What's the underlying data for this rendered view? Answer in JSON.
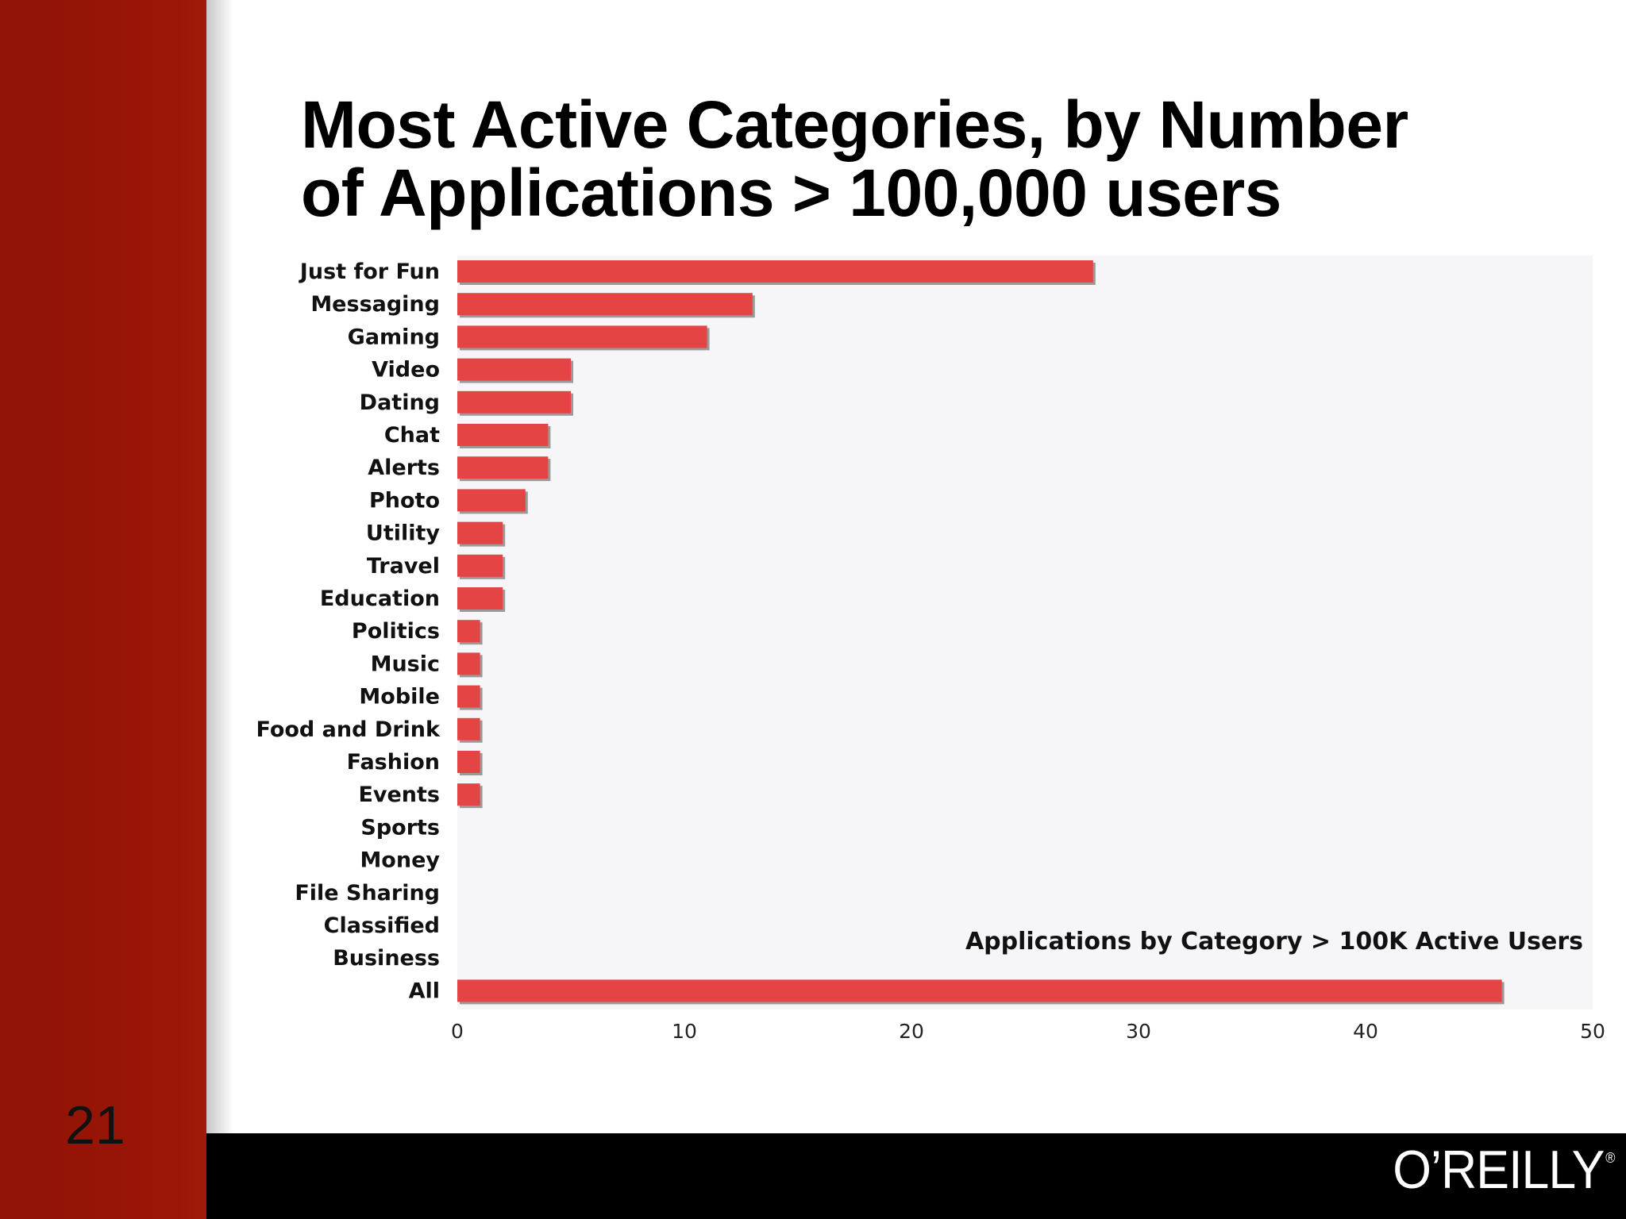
{
  "slide": {
    "number": "21",
    "title_line1": "Most Active Categories, by Number",
    "title_line2": "of Applications > 100,000 users",
    "logo_text": "O’REILLY",
    "logo_mark": "®"
  },
  "colors": {
    "bar": "#e44444",
    "bar_shadow": "#9a9a9a",
    "plot_bg": "#f6f6f8",
    "left_band": "#9b1607",
    "footer": "#000000"
  },
  "chart_data": {
    "type": "bar",
    "orientation": "horizontal",
    "title": "",
    "inline_label": "Applications by Category > 100K Active Users",
    "xlabel": "",
    "ylabel": "",
    "xlim": [
      0,
      50
    ],
    "x_ticks": [
      0,
      10,
      20,
      30,
      40,
      50
    ],
    "grid": false,
    "legend": "none",
    "categories": [
      "Just for Fun",
      "Messaging",
      "Gaming",
      "Video",
      "Dating",
      "Chat",
      "Alerts",
      "Photo",
      "Utility",
      "Travel",
      "Education",
      "Politics",
      "Music",
      "Mobile",
      "Food and Drink",
      "Fashion",
      "Events",
      "Sports",
      "Money",
      "File Sharing",
      "Classified",
      "Business",
      "All"
    ],
    "values": [
      28,
      13,
      11,
      5,
      5,
      4,
      4,
      3,
      2,
      2,
      2,
      1,
      1,
      1,
      1,
      1,
      1,
      0,
      0,
      0,
      0,
      0,
      46
    ]
  }
}
